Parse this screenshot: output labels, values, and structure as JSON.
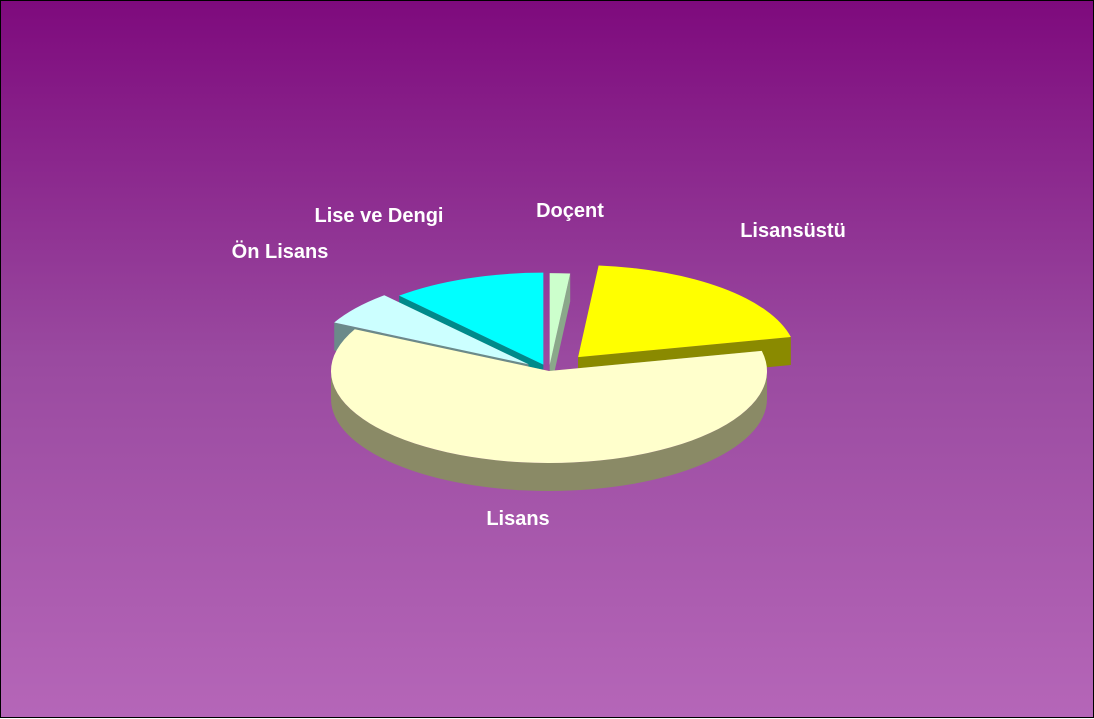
{
  "chart_data": {
    "type": "pie",
    "style": "3d-exploded",
    "categories": [
      "Doçent",
      "Lisansüstü",
      "Lisans",
      "Ön Lisans",
      "Lise ve Dengi"
    ],
    "values": [
      1.5,
      20,
      61,
      6,
      11.5
    ],
    "value_unit": "percent (estimated from slice angles)",
    "colors": {
      "top": [
        "#ccffcc",
        "#ffff00",
        "#ffffcc",
        "#ccffff",
        "#00ffff"
      ],
      "side": [
        "#8aa88a",
        "#8a8a00",
        "#8a8a66",
        "#6b8a8a",
        "#008a8a"
      ]
    },
    "title": "",
    "legend": "none (category labels placed beside slices)"
  }
}
